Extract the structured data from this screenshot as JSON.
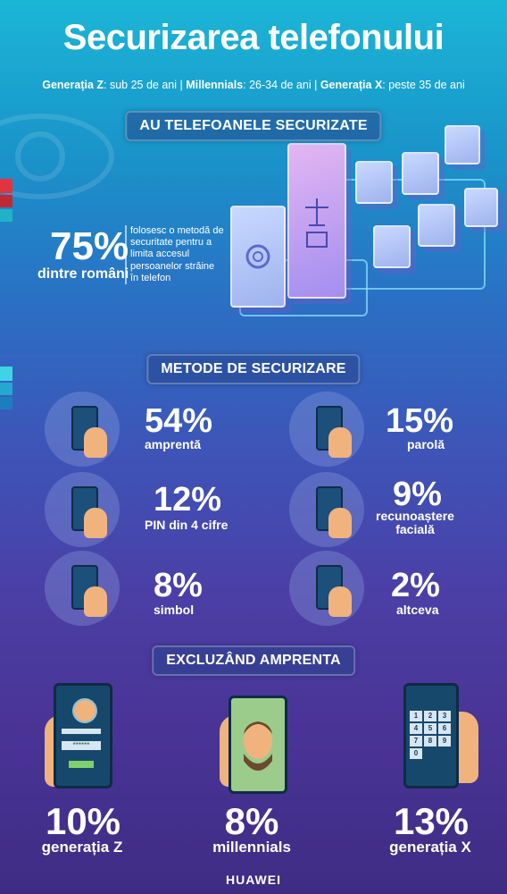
{
  "header": {
    "title": "Securizarea telefonului",
    "gen_z_label": "Generația Z",
    "gen_z_desc": ": sub 25 de ani |",
    "millennials_label": "Millennials",
    "millennials_desc": ": 26-34 de ani |",
    "gen_x_label": "Generația X",
    "gen_x_desc": ": peste 35 de ani"
  },
  "section1": {
    "title": "AU TELEFOANELE SECURIZATE",
    "percent": "75%",
    "subject": "dintre români",
    "note": "folosesc o metodă de securitate pentru a limita accesul persoanelor străine în telefon"
  },
  "section2": {
    "title": "METODE DE SECURIZARE",
    "methods": [
      {
        "percent": "54%",
        "label": "amprentă",
        "icon": "fingerprint-phone-icon"
      },
      {
        "percent": "15%",
        "label": "parolă",
        "icon": "password-phone-icon"
      },
      {
        "percent": "12%",
        "label": "PIN din 4 cifre",
        "icon": "pin-phone-icon"
      },
      {
        "percent": "9%",
        "label": "recunoaștere facială",
        "icon": "face-phone-icon"
      },
      {
        "percent": "8%",
        "label": "simbol",
        "icon": "pattern-phone-icon"
      },
      {
        "percent": "2%",
        "label": "altceva",
        "icon": "blank-phone-icon"
      }
    ]
  },
  "section3": {
    "title": "EXCLUZÂND AMPRENTA",
    "groups": [
      {
        "percent": "10%",
        "label": "generația Z"
      },
      {
        "percent": "8%",
        "label": "millennials"
      },
      {
        "percent": "13%",
        "label": "generația X"
      }
    ],
    "pin_keys": [
      "1",
      "2",
      "3",
      "4",
      "5",
      "6",
      "7",
      "8",
      "9",
      "0"
    ],
    "password_dots": "******"
  },
  "footer": {
    "brand": "HUAWEI"
  }
}
